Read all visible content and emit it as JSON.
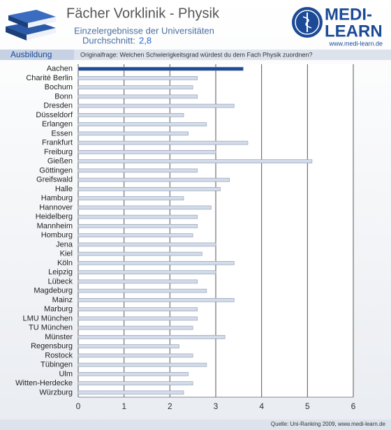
{
  "chart_data": {
    "type": "bar",
    "orientation": "horizontal",
    "title": "Fächer Vorklinik - Physik",
    "subtitle": "Einzelergebnisse der Universitäten",
    "average_label": "Durchschnitt:",
    "average_value": "2,8",
    "section": "Ausbildung",
    "question": "Originalfrage: Welchen Schwierigkeitsgrad würdest du dem Fach Physik zuordnen?",
    "logo": {
      "line1": "MEDI-",
      "line2": "LEARN",
      "url": "www.medi-learn.de"
    },
    "source": "Quelle: Uni-Ranking 2009, www.medi-learn.de",
    "categories": [
      "Aachen",
      "Charité Berlin",
      "Bochum",
      "Bonn",
      "Dresden",
      "Düsseldorf",
      "Erlangen",
      "Essen",
      "Frankfurt",
      "Freiburg",
      "Gießen",
      "Göttingen",
      "Greifswald",
      "Halle",
      "Hamburg",
      "Hannover",
      "Heidelberg",
      "Mannheim",
      "Homburg",
      "Jena",
      "Kiel",
      "Köln",
      "Leipzig",
      "Lübeck",
      "Magdeburg",
      "Mainz",
      "Marburg",
      "LMU München",
      "TU München",
      "Münster",
      "Regensburg",
      "Rostock",
      "Tübingen",
      "Ulm",
      "Witten-Herdecke",
      "Würzburg"
    ],
    "values": [
      3.6,
      2.6,
      2.5,
      2.6,
      3.4,
      2.3,
      2.8,
      2.4,
      3.7,
      3.0,
      5.1,
      2.6,
      3.3,
      3.1,
      2.3,
      2.9,
      2.6,
      2.6,
      2.5,
      3.0,
      2.7,
      3.4,
      3.0,
      2.6,
      2.8,
      3.4,
      2.6,
      2.6,
      2.5,
      3.2,
      2.2,
      2.5,
      2.8,
      2.4,
      2.5,
      2.3
    ],
    "colors": [
      "#1c4a96",
      "#d3dbe8",
      "#d3dbe8",
      "#d3dbe8",
      "#d3dbe8",
      "#d3dbe8",
      "#d3dbe8",
      "#d3dbe8",
      "#d3dbe8",
      "#d3dbe8",
      "#d3dbe8",
      "#d3dbe8",
      "#d3dbe8",
      "#d3dbe8",
      "#d3dbe8",
      "#d3dbe8",
      "#d3dbe8",
      "#d3dbe8",
      "#d3dbe8",
      "#d3dbe8",
      "#d3dbe8",
      "#d3dbe8",
      "#d3dbe8",
      "#d3dbe8",
      "#d3dbe8",
      "#d3dbe8",
      "#d3dbe8",
      "#d3dbe8",
      "#d3dbe8",
      "#d3dbe8",
      "#d3dbe8",
      "#d3dbe8",
      "#d3dbe8",
      "#d3dbe8",
      "#d3dbe8",
      "#d3dbe8"
    ],
    "xlim": [
      0,
      6
    ],
    "xticks": [
      0,
      1,
      2,
      3,
      4,
      5,
      6
    ],
    "grid": true
  }
}
